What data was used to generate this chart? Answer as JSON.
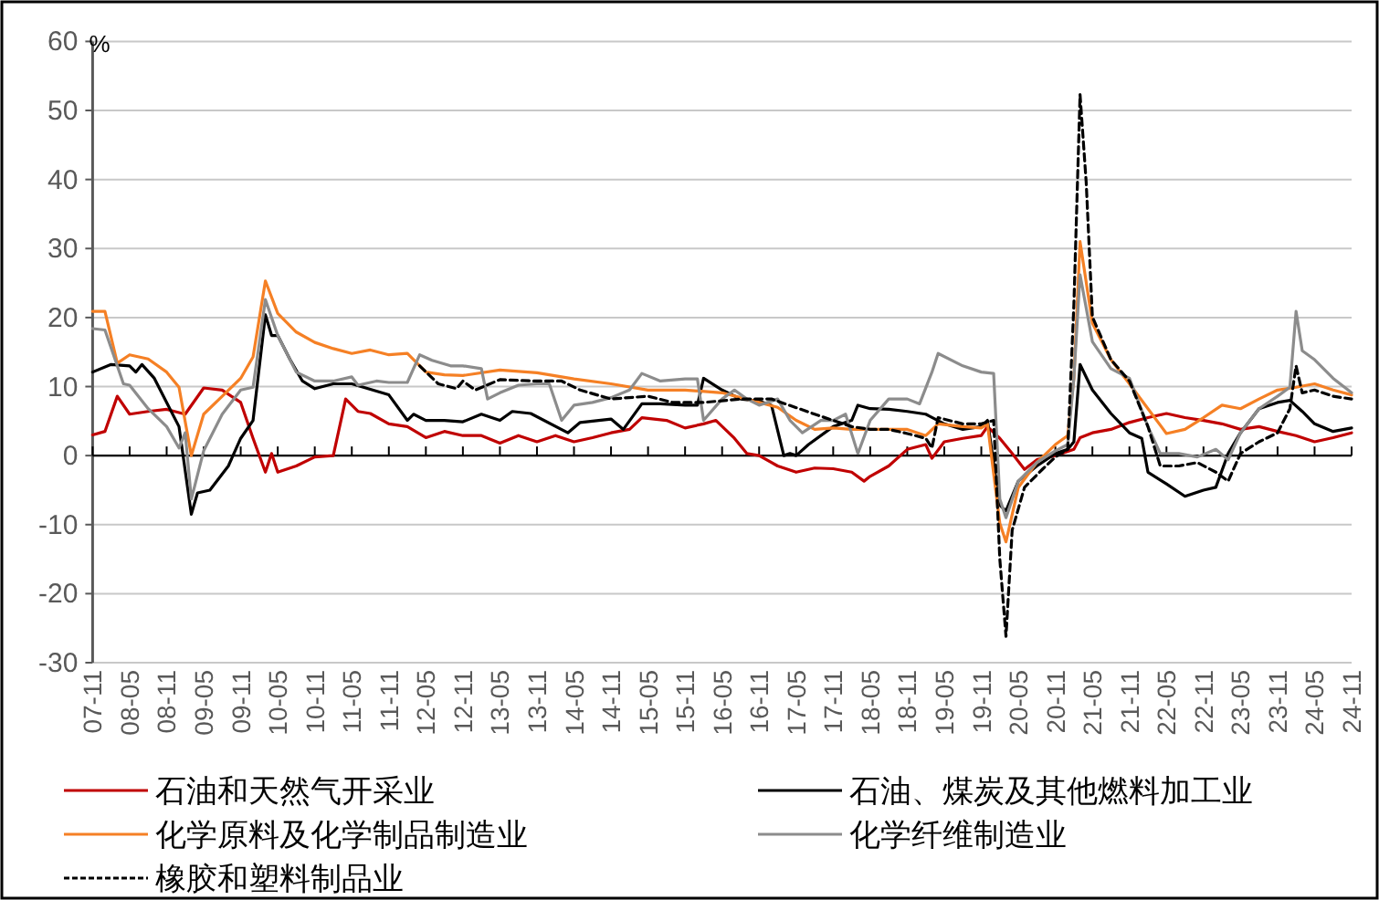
{
  "chart_data": {
    "type": "line",
    "ylabel": "%",
    "xlim": [
      "2007-11",
      "2024-11"
    ],
    "xticks": [
      {
        "value": "2007-11",
        "label": "07-11"
      },
      {
        "value": "2008-05",
        "label": "08-05"
      },
      {
        "value": "2008-11",
        "label": "08-11"
      },
      {
        "value": "2009-05",
        "label": "09-05"
      },
      {
        "value": "2009-11",
        "label": "09-11"
      },
      {
        "value": "2010-05",
        "label": "10-05"
      },
      {
        "value": "2010-11",
        "label": "10-11"
      },
      {
        "value": "2011-05",
        "label": "11-05"
      },
      {
        "value": "2011-11",
        "label": "11-11"
      },
      {
        "value": "2012-05",
        "label": "12-05"
      },
      {
        "value": "2012-11",
        "label": "12-11"
      },
      {
        "value": "2013-05",
        "label": "13-05"
      },
      {
        "value": "2013-11",
        "label": "13-11"
      },
      {
        "value": "2014-05",
        "label": "14-05"
      },
      {
        "value": "2014-11",
        "label": "14-11"
      },
      {
        "value": "2015-05",
        "label": "15-05"
      },
      {
        "value": "2015-11",
        "label": "15-11"
      },
      {
        "value": "2016-05",
        "label": "16-05"
      },
      {
        "value": "2016-11",
        "label": "16-11"
      },
      {
        "value": "2017-05",
        "label": "17-05"
      },
      {
        "value": "2017-11",
        "label": "17-11"
      },
      {
        "value": "2018-05",
        "label": "18-05"
      },
      {
        "value": "2018-11",
        "label": "18-11"
      },
      {
        "value": "2019-05",
        "label": "19-05"
      },
      {
        "value": "2019-11",
        "label": "19-11"
      },
      {
        "value": "2020-05",
        "label": "20-05"
      },
      {
        "value": "2020-11",
        "label": "20-11"
      },
      {
        "value": "2021-05",
        "label": "21-05"
      },
      {
        "value": "2021-11",
        "label": "21-11"
      },
      {
        "value": "2022-05",
        "label": "22-05"
      },
      {
        "value": "2022-11",
        "label": "22-11"
      },
      {
        "value": "2023-05",
        "label": "23-05"
      },
      {
        "value": "2023-11",
        "label": "23-11"
      },
      {
        "value": "2024-05",
        "label": "24-05"
      },
      {
        "value": "2024-11",
        "label": "24-11"
      }
    ],
    "ylim": [
      -30,
      60
    ],
    "yticks": [
      -30,
      -20,
      -10,
      0,
      10,
      20,
      30,
      40,
      50,
      60
    ],
    "grid": "y",
    "legend": "bottom",
    "series": [
      {
        "name": "石油和天然气开采业",
        "color": "#c00000",
        "line_style": "solid",
        "x": [
          "2007-11",
          "2008-01",
          "2008-03",
          "2008-05",
          "2008-08",
          "2008-11",
          "2009-02",
          "2009-05",
          "2009-08",
          "2009-11",
          "2010-01",
          "2010-03",
          "2010-04",
          "2010-05",
          "2010-08",
          "2010-11",
          "2011-02",
          "2011-04",
          "2011-06",
          "2011-08",
          "2011-11",
          "2012-02",
          "2012-05",
          "2012-08",
          "2012-11",
          "2013-02",
          "2013-05",
          "2013-08",
          "2013-11",
          "2014-02",
          "2014-05",
          "2014-08",
          "2014-11",
          "2015-02",
          "2015-04",
          "2015-08",
          "2015-11",
          "2016-02",
          "2016-04",
          "2016-07",
          "2016-09",
          "2016-11",
          "2017-02",
          "2017-05",
          "2017-08",
          "2017-11",
          "2018-02",
          "2018-04",
          "2018-05",
          "2018-08",
          "2018-11",
          "2019-02",
          "2019-03",
          "2019-05",
          "2019-08",
          "2019-11",
          "2019-12",
          "2020-02",
          "2020-04",
          "2020-06",
          "2020-08",
          "2020-11",
          "2021-02",
          "2021-03",
          "2021-05",
          "2021-08",
          "2021-11",
          "2022-02",
          "2022-05",
          "2022-08",
          "2022-11",
          "2023-02",
          "2023-05",
          "2023-08",
          "2023-11",
          "2024-02",
          "2024-05",
          "2024-08",
          "2024-11"
        ],
        "values": [
          3,
          3.5,
          8.6,
          6,
          6.4,
          6.7,
          6,
          9.8,
          9.5,
          7.7,
          2.5,
          -2.4,
          0.3,
          -2.4,
          -1.5,
          -0.2,
          0,
          8.2,
          6.4,
          6.1,
          4.6,
          4.2,
          2.6,
          3.5,
          2.9,
          2.9,
          1.8,
          2.9,
          2,
          2.9,
          2,
          2.6,
          3.3,
          3.8,
          5.5,
          5.1,
          4,
          4.6,
          5.1,
          2.5,
          0.3,
          0,
          -1.5,
          -2.4,
          -1.8,
          -1.9,
          -2.4,
          -3.7,
          -3,
          -1.5,
          0.9,
          1.6,
          -0.4,
          2,
          2.5,
          2.9,
          4.2,
          2.5,
          0.3,
          -2,
          -0.6,
          0,
          0.9,
          2.6,
          3.3,
          3.8,
          4.8,
          5.5,
          6.1,
          5.5,
          5.1,
          4.6,
          3.8,
          4.2,
          3.5,
          2.9,
          2,
          2.6,
          3.3
        ]
      },
      {
        "name": "石油、煤炭及其他燃料加工业",
        "color": "#000000",
        "line_style": "solid",
        "x": [
          "2007-11",
          "2008-02",
          "2008-05",
          "2008-06",
          "2008-07",
          "2008-09",
          "2008-11",
          "2009-01",
          "2009-03",
          "2009-04",
          "2009-06",
          "2009-09",
          "2009-11",
          "2010-01",
          "2010-03",
          "2010-04",
          "2010-05",
          "2010-07",
          "2010-09",
          "2010-11",
          "2011-02",
          "2011-05",
          "2011-08",
          "2011-11",
          "2012-02",
          "2012-03",
          "2012-05",
          "2012-08",
          "2012-11",
          "2013-02",
          "2013-05",
          "2013-07",
          "2013-10",
          "2014-04",
          "2014-06",
          "2014-09",
          "2014-11",
          "2015-01",
          "2015-04",
          "2015-07",
          "2015-11",
          "2016-01",
          "2016-02",
          "2016-05",
          "2016-08",
          "2016-11",
          "2017-01",
          "2017-03",
          "2017-04",
          "2017-05",
          "2017-07",
          "2017-11",
          "2018-02",
          "2018-03",
          "2018-05",
          "2018-08",
          "2018-11",
          "2019-02",
          "2019-05",
          "2019-08",
          "2019-11",
          "2019-12",
          "2020-02",
          "2020-03",
          "2020-05",
          "2020-08",
          "2020-11",
          "2021-01",
          "2021-02",
          "2021-03",
          "2021-05",
          "2021-08",
          "2021-11",
          "2022-01",
          "2022-02",
          "2022-05",
          "2022-08",
          "2022-11",
          "2023-01",
          "2023-03",
          "2023-05",
          "2023-08",
          "2023-11",
          "2024-01",
          "2024-03",
          "2024-05",
          "2024-08",
          "2024-11"
        ],
        "values": [
          12.1,
          13.2,
          13,
          12.1,
          13.2,
          11.2,
          7.7,
          4.2,
          -8.5,
          -5.4,
          -5,
          -1.5,
          2.5,
          5.1,
          20.4,
          17.4,
          17.4,
          13.9,
          10.8,
          9.7,
          10.4,
          10.4,
          9.6,
          8.8,
          5.1,
          6,
          5.1,
          5.1,
          4.9,
          6,
          5.1,
          6.4,
          6.1,
          3.3,
          4.8,
          5.1,
          5.3,
          3.8,
          7.5,
          7.5,
          7.3,
          7.3,
          11.2,
          9.5,
          8.2,
          7.9,
          7.3,
          0,
          0.3,
          0,
          1.6,
          4.2,
          5.1,
          7.3,
          6.8,
          6.7,
          6.4,
          6,
          4.6,
          3.8,
          4.2,
          5.1,
          -7.2,
          -8,
          -3.7,
          -1.5,
          0.3,
          0.9,
          2,
          13.2,
          9.5,
          6.1,
          3.3,
          2.5,
          -2.4,
          -4.1,
          -5.9,
          -5,
          -4.6,
          0.3,
          3.3,
          6.8,
          7.7,
          8,
          6.4,
          4.6,
          3.5,
          4
        ]
      },
      {
        "name": "化学原料及化学制品制造业",
        "color": "#f58025",
        "line_style": "solid",
        "x": [
          "2007-11",
          "2008-01",
          "2008-03",
          "2008-05",
          "2008-08",
          "2008-11",
          "2009-01",
          "2009-03",
          "2009-05",
          "2009-08",
          "2009-11",
          "2010-01",
          "2010-03",
          "2010-05",
          "2010-08",
          "2010-11",
          "2011-02",
          "2011-05",
          "2011-08",
          "2011-11",
          "2012-02",
          "2012-05",
          "2012-08",
          "2012-11",
          "2013-05",
          "2013-11",
          "2014-05",
          "2014-11",
          "2015-05",
          "2015-11",
          "2016-05",
          "2016-11",
          "2017-02",
          "2017-05",
          "2017-08",
          "2017-11",
          "2018-02",
          "2018-05",
          "2018-08",
          "2018-11",
          "2019-02",
          "2019-04",
          "2019-08",
          "2019-11",
          "2019-12",
          "2020-02",
          "2020-03",
          "2020-05",
          "2020-08",
          "2020-11",
          "2021-01",
          "2021-02",
          "2021-03",
          "2021-05",
          "2021-08",
          "2021-11",
          "2022-02",
          "2022-05",
          "2022-08",
          "2022-11",
          "2023-02",
          "2023-05",
          "2023-08",
          "2023-11",
          "2024-02",
          "2024-05",
          "2024-08",
          "2024-11"
        ],
        "values": [
          20.9,
          20.9,
          13.4,
          14.6,
          14,
          12.1,
          9.9,
          0,
          6,
          8.6,
          11.2,
          14.3,
          25.3,
          20.6,
          17.9,
          16.4,
          15.5,
          14.8,
          15.3,
          14.6,
          14.8,
          12.1,
          11.7,
          11.6,
          12.4,
          12,
          11.1,
          10.4,
          9.5,
          9.5,
          9.1,
          7.7,
          7,
          5.1,
          3.8,
          4,
          3.8,
          3.8,
          3.8,
          3.8,
          2.9,
          4.6,
          4.2,
          4,
          4.6,
          -9.8,
          -12.5,
          -4.6,
          -1,
          1.6,
          2.9,
          11.2,
          31,
          19.2,
          13.9,
          10.4,
          6.8,
          3.2,
          3.8,
          5.5,
          7.3,
          6.8,
          8.2,
          9.5,
          9.9,
          10.4,
          9.5,
          8.8
        ]
      },
      {
        "name": "化学纤维制造业",
        "color": "#8c8c8c",
        "line_style": "solid",
        "x": [
          "2007-11",
          "2008-01",
          "2008-04",
          "2008-05",
          "2008-08",
          "2008-11",
          "2009-01",
          "2009-02",
          "2009-03",
          "2009-05",
          "2009-08",
          "2009-11",
          "2010-01",
          "2010-03",
          "2010-05",
          "2010-08",
          "2010-11",
          "2011-02",
          "2011-05",
          "2011-06",
          "2011-09",
          "2011-11",
          "2012-02",
          "2012-04",
          "2012-06",
          "2012-09",
          "2012-11",
          "2013-02",
          "2013-03",
          "2013-05",
          "2013-08",
          "2013-11",
          "2014-01",
          "2014-03",
          "2014-05",
          "2014-08",
          "2014-11",
          "2015-02",
          "2015-04",
          "2015-07",
          "2015-11",
          "2016-01",
          "2016-02",
          "2016-05",
          "2016-07",
          "2016-09",
          "2016-11",
          "2017-02",
          "2017-04",
          "2017-06",
          "2017-09",
          "2017-11",
          "2018-01",
          "2018-03",
          "2018-05",
          "2018-08",
          "2018-11",
          "2019-01",
          "2019-03",
          "2019-04",
          "2019-08",
          "2019-11",
          "2020-01",
          "2020-02",
          "2020-03",
          "2020-05",
          "2020-08",
          "2020-11",
          "2021-01",
          "2021-02",
          "2021-03",
          "2021-05",
          "2021-08",
          "2021-11",
          "2022-02",
          "2022-04",
          "2022-07",
          "2022-10",
          "2023-01",
          "2023-03",
          "2023-05",
          "2023-08",
          "2023-11",
          "2024-01",
          "2024-02",
          "2024-03",
          "2024-05",
          "2024-08",
          "2024-11"
        ],
        "values": [
          18.4,
          18.2,
          10.4,
          10.2,
          6.8,
          4.2,
          1.1,
          3.3,
          -6.3,
          0.7,
          6,
          9.5,
          9.9,
          22.6,
          17.4,
          12.1,
          10.8,
          10.8,
          11.4,
          10.2,
          10.8,
          10.6,
          10.6,
          14.6,
          13.8,
          13,
          13,
          12.6,
          8.2,
          9.1,
          10.2,
          10.4,
          10.4,
          5.1,
          7.3,
          7.7,
          8.4,
          9.5,
          11.9,
          10.8,
          11.1,
          11.1,
          5.1,
          8.2,
          9.5,
          8.2,
          7.3,
          8.2,
          5.1,
          3.3,
          5.1,
          5.1,
          6,
          0.3,
          5.1,
          8.2,
          8.2,
          7.5,
          12.1,
          14.8,
          13,
          12.1,
          11.9,
          -6.3,
          -9,
          -3.7,
          -1,
          0.7,
          1.6,
          11.2,
          26.2,
          16.5,
          12.6,
          11.2,
          4.2,
          0.3,
          0.3,
          -0.2,
          0.9,
          -0.6,
          3.3,
          6.8,
          8.6,
          9.9,
          20.9,
          15.2,
          13.9,
          11.2,
          9.1
        ]
      },
      {
        "name": "橡胶和塑料制品业",
        "color": "#000000",
        "line_style": "dashed",
        "x": [
          "2012-04",
          "2012-07",
          "2012-10",
          "2012-11",
          "2013-01",
          "2013-05",
          "2013-11",
          "2014-03",
          "2014-06",
          "2014-11",
          "2015-05",
          "2015-09",
          "2016-02",
          "2016-08",
          "2017-01",
          "2017-08",
          "2018-02",
          "2018-05",
          "2018-08",
          "2018-11",
          "2019-02",
          "2019-03",
          "2019-04",
          "2019-08",
          "2019-11",
          "2020-01",
          "2020-02",
          "2020-03",
          "2020-04",
          "2020-06",
          "2020-09",
          "2020-11",
          "2021-01",
          "2021-02",
          "2021-03",
          "2021-04",
          "2021-05",
          "2021-08",
          "2021-11",
          "2022-02",
          "2022-04",
          "2022-07",
          "2022-10",
          "2023-01",
          "2023-03",
          "2023-05",
          "2023-08",
          "2023-11",
          "2024-01",
          "2024-02",
          "2024-03",
          "2024-05",
          "2024-08",
          "2024-11"
        ],
        "values": [
          13,
          10.4,
          9.7,
          10.8,
          9.5,
          11,
          10.8,
          10.8,
          9.5,
          8.2,
          8.6,
          7.7,
          7.7,
          8.2,
          8.2,
          6,
          4.2,
          3.8,
          3.8,
          3.2,
          2.5,
          1.1,
          5.5,
          4.6,
          4.6,
          5.1,
          -15,
          -26.2,
          -10.8,
          -4.6,
          -1.9,
          -0.2,
          0.9,
          21.9,
          52.3,
          39.5,
          20.1,
          13.9,
          10.8,
          4.2,
          -1.5,
          -1.5,
          -1,
          -2.4,
          -3.7,
          0.3,
          2,
          3.3,
          6.8,
          13,
          9.1,
          9.5,
          8.6,
          8.2
        ]
      }
    ]
  }
}
